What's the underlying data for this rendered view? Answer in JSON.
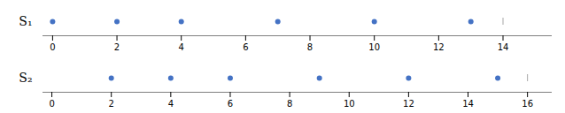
{
  "chart_data": [
    {
      "type": "scatter",
      "ylabel": "S₁",
      "x": [
        0,
        2,
        4,
        7,
        10,
        13
      ],
      "color": "#4472C4",
      "line": [
        0,
        14
      ],
      "xlim": [
        -0.3,
        15.5
      ],
      "xticks": [
        0,
        2,
        4,
        6,
        8,
        10,
        12,
        14
      ],
      "grid": false
    },
    {
      "type": "scatter",
      "ylabel": "S₂",
      "x": [
        2,
        4,
        6,
        9,
        12,
        15
      ],
      "color": "#4472C4",
      "line": [
        0,
        16
      ],
      "xlim": [
        -0.3,
        16.8
      ],
      "xticks": [
        0,
        2,
        4,
        6,
        8,
        10,
        12,
        14,
        16
      ],
      "grid": false
    }
  ]
}
